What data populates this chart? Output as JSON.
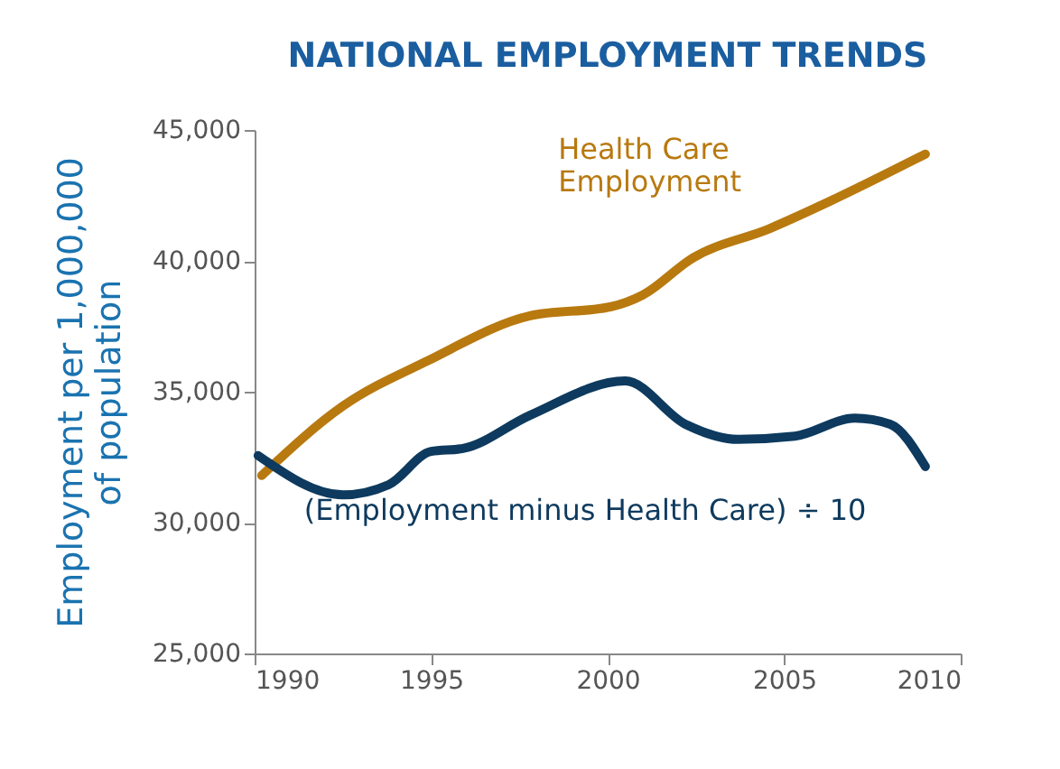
{
  "chart_data": {
    "type": "line",
    "title": "NATIONAL EMPLOYMENT TRENDS",
    "ylabel": "Employment per 1,000,000\nof population",
    "xlim": [
      1990,
      2010
    ],
    "xticks": [
      1990,
      1995,
      2000,
      2005,
      2010
    ],
    "ylim": [
      25000,
      45000
    ],
    "yticks": [
      {
        "value": 25000,
        "label": "25,000"
      },
      {
        "value": 30000,
        "label": "30,000"
      },
      {
        "value": 35000,
        "label": "35,000"
      },
      {
        "value": 40000,
        "label": "40,000"
      },
      {
        "value": 45000,
        "label": "45,000"
      }
    ],
    "grid": false,
    "legend": false,
    "line_style": "solid",
    "marker": "none",
    "series": [
      {
        "name": "Health Care\nEmployment",
        "color": "#b8790f",
        "x": [
          1990.2,
          1992.5,
          1994.9,
          1997.8,
          2000.1,
          2001,
          2002.4,
          2004.6,
          2006.3,
          2009
        ],
        "values": [
          31800,
          34450,
          36180,
          37900,
          38250,
          38700,
          40100,
          41240,
          42280,
          44080
        ]
      },
      {
        "name": "(Employment minus Health Care) ÷ 10",
        "color": "#0d3a5e",
        "x": [
          1990.1,
          1992.5,
          1993.8,
          1995,
          1995.9,
          1997.8,
          2000.5,
          2002.2,
          2003.7,
          2005.3,
          2007,
          2008,
          2009
        ],
        "values": [
          32560,
          31060,
          31450,
          32720,
          32830,
          34100,
          35410,
          33760,
          33180,
          33300,
          33990,
          33760,
          32140
        ]
      }
    ]
  }
}
